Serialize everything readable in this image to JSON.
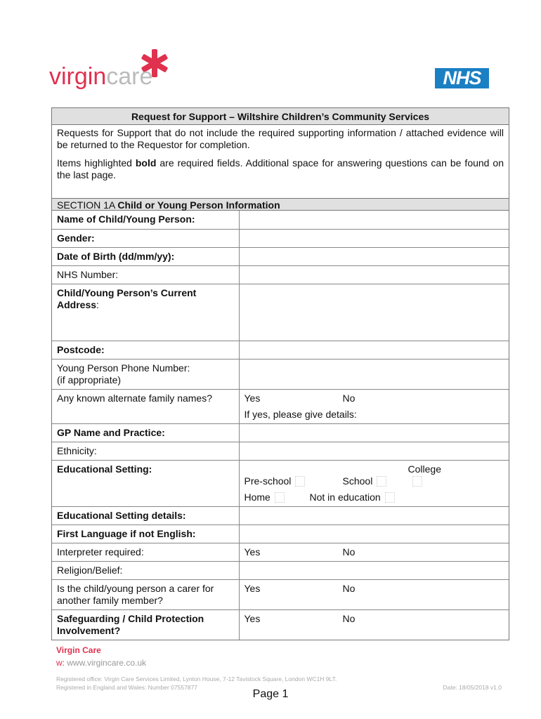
{
  "header": {
    "logo_left": "virgincare",
    "logo_right": "NHS",
    "colors": {
      "virgin_red": "#e0314f",
      "nhs_blue": "#1b7fc4"
    }
  },
  "form": {
    "title": "Request for Support – Wiltshire Children’s Community Services",
    "intro1": "Requests for Support that do not include the required supporting information / attached evidence will be returned to the Requestor for completion.",
    "intro2_a": "Items highlighted ",
    "intro2_b": "bold",
    "intro2_c": " are required fields. Additional space for answering questions can be found on the last page.",
    "section_prefix": "SECTION 1A ",
    "section_title": "Child or Young Person Information",
    "rows": [
      {
        "label": "Name of Child/Young Person:",
        "bold": true
      },
      {
        "label": "Gender:",
        "bold": true
      },
      {
        "label": "Date of Birth (dd/mm/yy):",
        "bold": true
      },
      {
        "label": "NHS Number:",
        "bold": false
      },
      {
        "label": "Child/Young Person’s Current Address",
        "suffix": ":",
        "bold": true
      },
      {
        "label": "Postcode:",
        "bold": true
      },
      {
        "label": "Young Person Phone Number:",
        "label2": "(if appropriate)",
        "bold": false
      },
      {
        "label": "Any known alternate family names?",
        "bold": false,
        "yes": "Yes",
        "no": "No",
        "details": "If yes, please give details:"
      },
      {
        "label": "GP Name and Practice:",
        "bold": true
      },
      {
        "label": "Ethnicity:",
        "bold": false
      },
      {
        "label": "Educational Setting:",
        "bold": true,
        "options": [
          "Pre-school",
          "School",
          "College",
          "Home",
          "Not in education"
        ]
      },
      {
        "label": "Educational Setting details:",
        "bold": true
      },
      {
        "label": "First Language if not English:",
        "bold": true
      },
      {
        "label": "Interpreter required:",
        "bold": false,
        "yes": "Yes",
        "no": "No"
      },
      {
        "label": "Religion/Belief:",
        "bold": false
      },
      {
        "label": "Is the child/young person a carer for another family member?",
        "bold": false,
        "yes": "Yes",
        "no": "No"
      },
      {
        "label": "Safeguarding / Child Protection Involvement?",
        "bold": true,
        "yes": "Yes",
        "no": "No"
      }
    ]
  },
  "footer": {
    "company": "Virgin Care",
    "web_label": "w:",
    "web": "www.virgincare.co.uk",
    "office": "Registered office: Virgin Care Services Limited, Lynton House, 7-12 Tavistock Square, London WC1H 9LT.",
    "reg": "Registered in England and Wales: Number 07557877",
    "date": "Date: 18/05/2018 v1.0",
    "page": "Page 1"
  }
}
